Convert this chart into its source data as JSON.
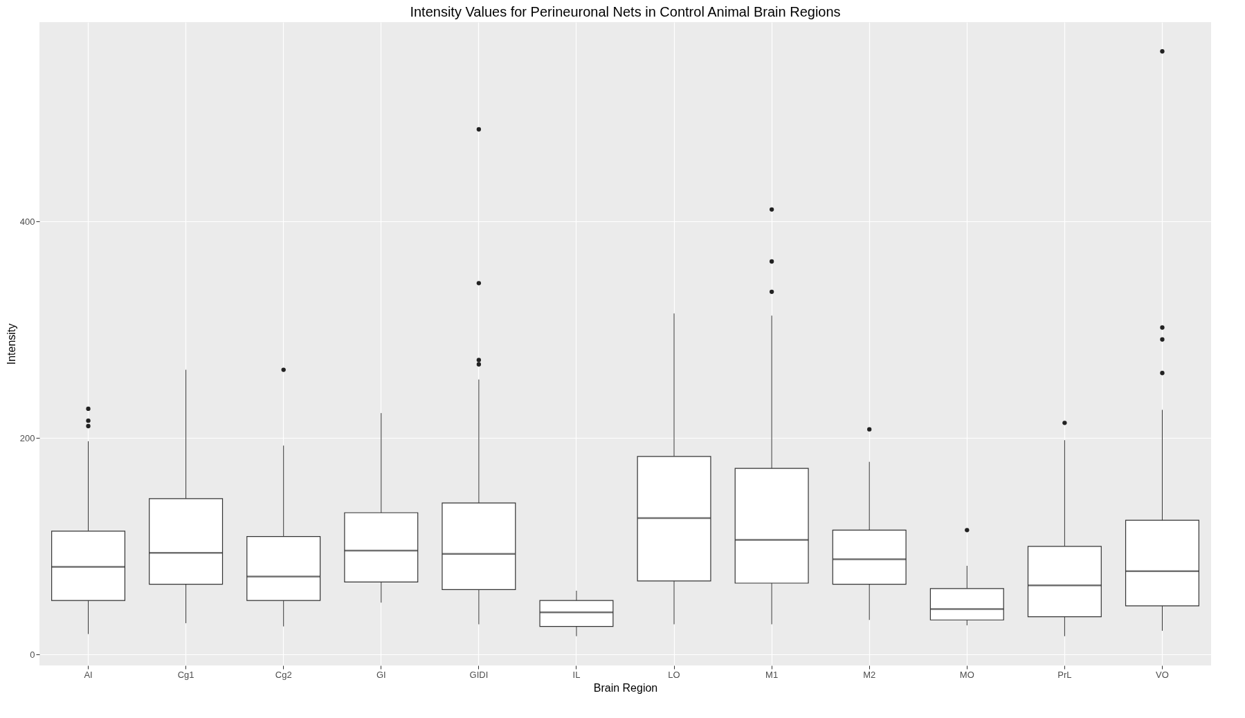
{
  "chart_data": {
    "type": "box",
    "title": "Intensity Values for Perineuronal Nets in Control Animal Brain Regions",
    "xlabel": "Brain Region",
    "ylabel": "Intensity",
    "categories": [
      "AI",
      "Cg1",
      "Cg2",
      "GI",
      "GIDI",
      "IL",
      "LO",
      "M1",
      "M2",
      "MO",
      "PrL",
      "VO"
    ],
    "boxes": [
      {
        "low": 19,
        "q1": 50,
        "median": 81,
        "q3": 114,
        "high": 197,
        "outliers": [
          227,
          216,
          211
        ]
      },
      {
        "low": 29,
        "q1": 65,
        "median": 94,
        "q3": 144,
        "high": 263
      },
      {
        "low": 26,
        "q1": 50,
        "median": 72,
        "q3": 109,
        "high": 193,
        "outliers": [
          263
        ]
      },
      {
        "low": 48,
        "q1": 67,
        "median": 96,
        "q3": 131,
        "high": 223
      },
      {
        "low": 28,
        "q1": 60,
        "median": 93,
        "q3": 140,
        "high": 254,
        "outliers": [
          485,
          343,
          272,
          268
        ]
      },
      {
        "low": 17,
        "q1": 26,
        "median": 39,
        "q3": 50,
        "high": 59
      },
      {
        "low": 28,
        "q1": 68,
        "median": 126,
        "q3": 183,
        "high": 315
      },
      {
        "low": 28,
        "q1": 66,
        "median": 106,
        "q3": 172,
        "high": 313,
        "outliers": [
          411,
          363,
          335
        ]
      },
      {
        "low": 32,
        "q1": 65,
        "median": 88,
        "q3": 115,
        "high": 178,
        "outliers": [
          208
        ]
      },
      {
        "low": 27,
        "q1": 32,
        "median": 42,
        "q3": 61,
        "high": 82,
        "outliers": [
          115
        ]
      },
      {
        "low": 17,
        "q1": 35,
        "median": 64,
        "q3": 100,
        "high": 198,
        "outliers": [
          214
        ]
      },
      {
        "low": 22,
        "q1": 45,
        "median": 77,
        "q3": 124,
        "high": 226,
        "outliers": [
          557,
          302,
          291,
          260
        ]
      }
    ],
    "ylim": [
      -10,
      584
    ],
    "yticks": [
      0,
      200,
      400
    ],
    "grid": true
  }
}
